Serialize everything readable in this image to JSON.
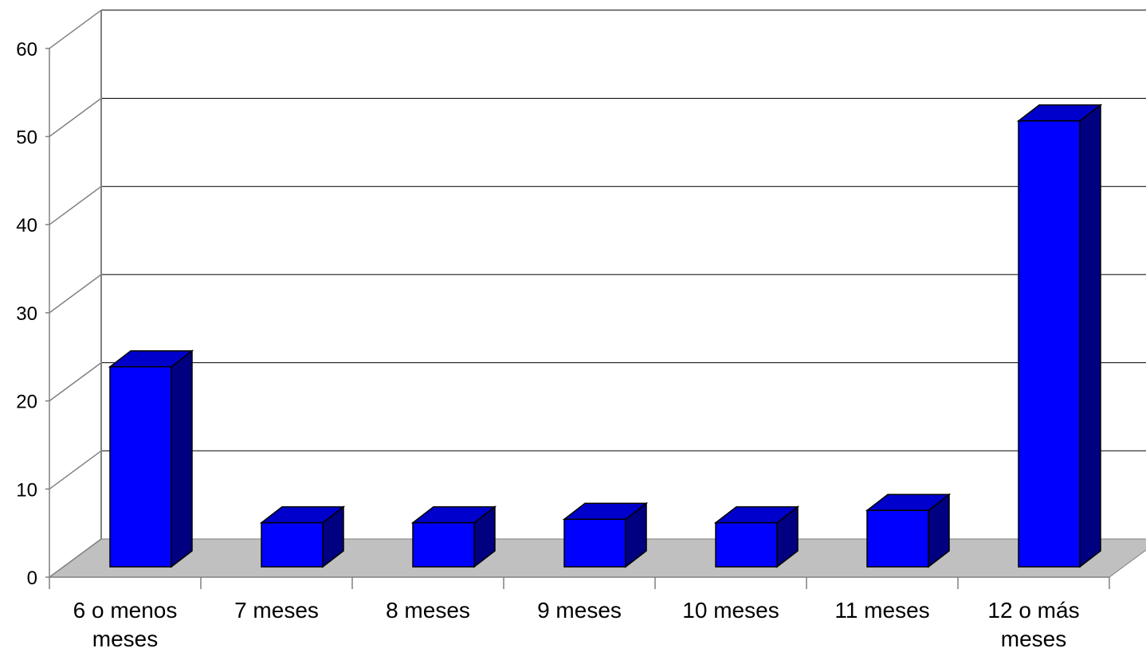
{
  "chart_data": {
    "type": "bar",
    "categories": [
      "6 o menos meses",
      "7 meses",
      "8 meses",
      "9 meses",
      "10 meses",
      "11 meses",
      "12 o más meses"
    ],
    "category_lines": [
      [
        "6 o menos",
        "meses"
      ],
      [
        "7 meses"
      ],
      [
        "8 meses"
      ],
      [
        "9 meses"
      ],
      [
        "10 meses"
      ],
      [
        "11 meses"
      ],
      [
        "12 o más",
        "meses"
      ]
    ],
    "values": [
      22.7,
      5,
      5,
      5.4,
      5,
      6.4,
      50.6
    ],
    "ylim": [
      0,
      60
    ],
    "yticks": [
      0,
      10,
      20,
      30,
      40,
      50,
      60
    ],
    "grid": true,
    "style": "3d-column",
    "colors": {
      "bar_front": "#0000FF",
      "bar_top": "#0000CC",
      "bar_side": "#000080",
      "floor": "#C0C0C0",
      "gridline": "#000000",
      "wall_edge": "#808080",
      "outline": "#000000"
    }
  }
}
